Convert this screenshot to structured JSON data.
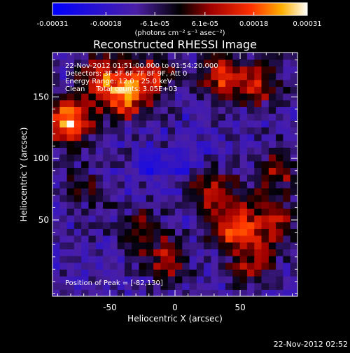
{
  "colorbar": {
    "tick_labels": [
      "-0.00031",
      "-0.00018",
      "-6.1e-05",
      "6.1e-05",
      "0.00018",
      "0.00031"
    ],
    "unit_label": "(photons cm⁻² s⁻¹ asec⁻²)",
    "range": [
      -0.00031,
      0.00031
    ],
    "colors": [
      "#0000ff",
      "#4b1fa5",
      "#000000",
      "#a00000",
      "#ff3000",
      "#ffb000",
      "#ffffff"
    ]
  },
  "chart_data": {
    "type": "heatmap",
    "title": "Reconstructed RHESSI Image",
    "xlabel": "Heliocentric X (arcsec)",
    "ylabel": "Heliocentric Y (arcsec)",
    "xlim": [
      -94,
      94
    ],
    "ylim": [
      -12,
      186
    ],
    "x_ticks": [
      -50,
      0,
      50
    ],
    "y_ticks": [
      50,
      100,
      150
    ],
    "grid": false,
    "grid_shape": [
      34,
      36
    ],
    "hotspots": [
      {
        "x": -82,
        "y": 130,
        "value": 1.0
      },
      {
        "x": -40,
        "y": 150,
        "value": 0.75
      },
      {
        "x": -20,
        "y": 165,
        "value": 0.6
      },
      {
        "x": 35,
        "y": 165,
        "value": 0.65
      },
      {
        "x": 65,
        "y": 160,
        "value": 0.5
      },
      {
        "x": -55,
        "y": 170,
        "value": 0.55
      },
      {
        "x": 45,
        "y": 45,
        "value": 0.7
      },
      {
        "x": 30,
        "y": 75,
        "value": 0.55
      },
      {
        "x": 75,
        "y": 50,
        "value": 0.6
      },
      {
        "x": -25,
        "y": 40,
        "value": 0.5
      },
      {
        "x": -5,
        "y": 15,
        "value": 0.45
      },
      {
        "x": 60,
        "y": 15,
        "value": 0.5
      },
      {
        "x": 80,
        "y": 90,
        "value": 0.45
      },
      {
        "x": -70,
        "y": 75,
        "value": 0.3
      }
    ],
    "annotations": {
      "time_range": "22-Nov-2012 01:51:00.000 to 01:54:20.000",
      "detectors": "Detectors: 3F 5F 6F 7F 8F 9F, Att 0",
      "energy_range": "Energy Range: 12.0 - 25.0 keV",
      "algorithm": "Clean     Total counts: 3.05E+03",
      "peak": "Position of Peak = [-82,130]"
    }
  },
  "footer": {
    "timestamp": "22-Nov-2012 02:52"
  }
}
